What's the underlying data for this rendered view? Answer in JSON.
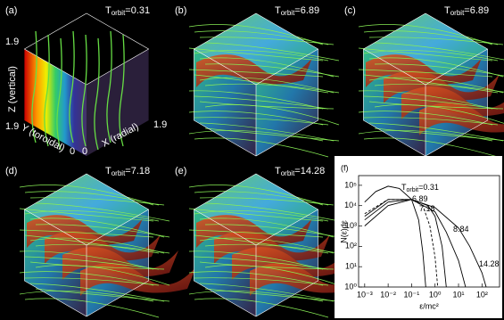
{
  "panels": [
    {
      "label": "(a)",
      "time": {
        "symbol": "T",
        "subscript": "orbit",
        "value": "=0.31"
      },
      "axes": {
        "z_label": "Z (vertical)",
        "y_label": "Y (toroidal)",
        "x_label": "X (radial)",
        "z_top": "1.9",
        "y_far": "1.9",
        "y_zero": "0",
        "x_zero": "0",
        "x_far": "1.9"
      }
    },
    {
      "label": "(b)",
      "time": {
        "symbol": "T",
        "subscript": "orbit",
        "value": "=6.89"
      }
    },
    {
      "label": "(c)",
      "time": {
        "symbol": "T",
        "subscript": "orbit",
        "value": "=6.89"
      }
    },
    {
      "label": "(d)",
      "time": {
        "symbol": "T",
        "subscript": "orbit",
        "value": "=7.18"
      }
    },
    {
      "label": "(e)",
      "time": {
        "symbol": "T",
        "subscript": "orbit",
        "value": "=14.28"
      }
    }
  ],
  "chart_data": {
    "type": "line",
    "panel_label": "(f)",
    "x_label": "ε/mc²",
    "y_label": "N(ε)dε",
    "log_x": true,
    "log_y": true,
    "color": "#000",
    "xlim": [
      0.00055,
      560
    ],
    "ylim": [
      1,
      300000
    ],
    "xticks": [
      {
        "value": 0.001,
        "label": "10⁻³"
      },
      {
        "value": 0.01,
        "label": "10⁻²"
      },
      {
        "value": 0.1,
        "label": "10⁻¹"
      },
      {
        "value": 1,
        "label": "10⁰"
      },
      {
        "value": 10,
        "label": "10¹"
      },
      {
        "value": 100,
        "label": "10²"
      }
    ],
    "yticks": [
      {
        "value": 1,
        "label": "10⁰"
      },
      {
        "value": 10,
        "label": "10¹"
      },
      {
        "value": 100,
        "label": "10²"
      },
      {
        "value": 1000,
        "label": "10³"
      },
      {
        "value": 10000,
        "label": "10⁴"
      },
      {
        "value": 100000,
        "label": "10⁵"
      }
    ],
    "curve_label_prefix": {
      "symbol": "T",
      "subscript": "orbit",
      "text": "="
    },
    "series": [
      {
        "name": "0.31",
        "dashed": false,
        "x": [
          0.001,
          0.003,
          0.01,
          0.03,
          0.1,
          0.2,
          0.3,
          0.4
        ],
        "values": [
          15000,
          50000,
          90000,
          70000,
          20000,
          2000,
          50,
          1
        ]
      },
      {
        "name": "6.89",
        "dashed": true,
        "x": [
          0.001,
          0.01,
          0.1,
          0.3,
          0.6,
          1,
          1.3
        ],
        "values": [
          4000,
          20000,
          20000,
          10000,
          1000,
          30,
          1
        ]
      },
      {
        "name": "7.18",
        "dashed": false,
        "x": [
          0.001,
          0.01,
          0.1,
          0.5,
          1,
          2,
          3
        ],
        "values": [
          3000,
          20000,
          20000,
          10000,
          3000,
          100,
          1
        ]
      },
      {
        "name": "8.84",
        "dashed": false,
        "x": [
          0.001,
          0.01,
          0.1,
          1,
          3,
          10,
          20
        ],
        "values": [
          2000,
          15000,
          20000,
          5000,
          500,
          20,
          1
        ]
      },
      {
        "name": "14.28",
        "dashed": false,
        "x": [
          0.001,
          0.01,
          0.1,
          1,
          10,
          30,
          100,
          150
        ],
        "values": [
          1000,
          10000,
          20000,
          8000,
          800,
          100,
          5,
          1
        ]
      }
    ]
  }
}
